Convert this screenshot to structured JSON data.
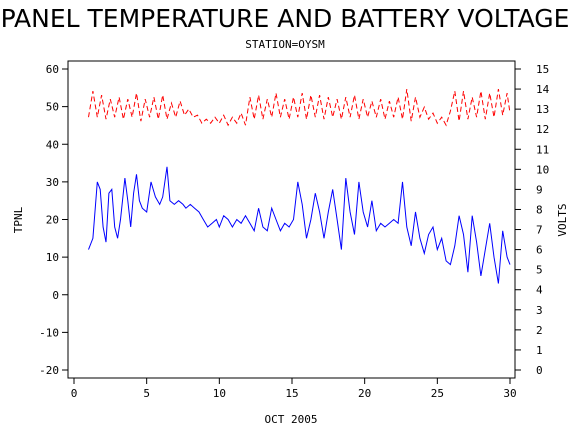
{
  "chart_data": {
    "type": "line",
    "title": "PANEL TEMPERATURE AND BATTERY VOLTAGE",
    "subtitle": "STATION=OYSM",
    "xlabel": "OCT 2005",
    "ylabel_left": "TPNL",
    "ylabel_right": "VOLTS",
    "xlim": [
      0,
      30
    ],
    "ylim_left": [
      -20,
      60
    ],
    "ylim_right": [
      0,
      15
    ],
    "x_ticks": [
      "0",
      "5",
      "10",
      "15",
      "20",
      "25",
      "30"
    ],
    "y_ticks_left": [
      "-20",
      "-10",
      "0",
      "10",
      "20",
      "30",
      "40",
      "50",
      "60"
    ],
    "y_ticks_right": [
      "0",
      "1",
      "2",
      "3",
      "4",
      "5",
      "6",
      "7",
      "8",
      "9",
      "10",
      "11",
      "12",
      "13",
      "14",
      "15"
    ],
    "series": [
      {
        "name": "TPNL",
        "axis": "left",
        "color": "#0000ff",
        "style": "solid",
        "points": [
          [
            1.0,
            12
          ],
          [
            1.3,
            15
          ],
          [
            1.6,
            30
          ],
          [
            1.8,
            28
          ],
          [
            2.0,
            18
          ],
          [
            2.2,
            14
          ],
          [
            2.4,
            27
          ],
          [
            2.6,
            28
          ],
          [
            2.8,
            18
          ],
          [
            3.0,
            15
          ],
          [
            3.2,
            20
          ],
          [
            3.5,
            31
          ],
          [
            3.7,
            25
          ],
          [
            3.9,
            18
          ],
          [
            4.1,
            27
          ],
          [
            4.3,
            32
          ],
          [
            4.5,
            25
          ],
          [
            4.7,
            23
          ],
          [
            5.0,
            22
          ],
          [
            5.3,
            30
          ],
          [
            5.6,
            26
          ],
          [
            5.9,
            24
          ],
          [
            6.1,
            26
          ],
          [
            6.4,
            34
          ],
          [
            6.6,
            25
          ],
          [
            6.9,
            24
          ],
          [
            7.2,
            25
          ],
          [
            7.5,
            24
          ],
          [
            7.7,
            23
          ],
          [
            8.0,
            24
          ],
          [
            8.3,
            23
          ],
          [
            8.6,
            22
          ],
          [
            8.9,
            20
          ],
          [
            9.2,
            18
          ],
          [
            9.5,
            19
          ],
          [
            9.8,
            20
          ],
          [
            10.0,
            18
          ],
          [
            10.3,
            21
          ],
          [
            10.6,
            20
          ],
          [
            10.9,
            18
          ],
          [
            11.2,
            20
          ],
          [
            11.5,
            19
          ],
          [
            11.8,
            21
          ],
          [
            12.1,
            19
          ],
          [
            12.4,
            17
          ],
          [
            12.7,
            23
          ],
          [
            13.0,
            18
          ],
          [
            13.3,
            17
          ],
          [
            13.6,
            23
          ],
          [
            13.9,
            20
          ],
          [
            14.2,
            17
          ],
          [
            14.5,
            19
          ],
          [
            14.8,
            18
          ],
          [
            15.1,
            20
          ],
          [
            15.4,
            30
          ],
          [
            15.7,
            24
          ],
          [
            16.0,
            15
          ],
          [
            16.3,
            20
          ],
          [
            16.6,
            27
          ],
          [
            16.9,
            22
          ],
          [
            17.2,
            15
          ],
          [
            17.5,
            22
          ],
          [
            17.8,
            28
          ],
          [
            18.1,
            20
          ],
          [
            18.4,
            12
          ],
          [
            18.7,
            31
          ],
          [
            19.0,
            22
          ],
          [
            19.3,
            16
          ],
          [
            19.6,
            30
          ],
          [
            19.9,
            22
          ],
          [
            20.2,
            18
          ],
          [
            20.5,
            25
          ],
          [
            20.8,
            17
          ],
          [
            21.1,
            19
          ],
          [
            21.4,
            18
          ],
          [
            21.7,
            19
          ],
          [
            22.0,
            20
          ],
          [
            22.3,
            19
          ],
          [
            22.6,
            30
          ],
          [
            22.9,
            18
          ],
          [
            23.2,
            13
          ],
          [
            23.5,
            22
          ],
          [
            23.8,
            15
          ],
          [
            24.1,
            11
          ],
          [
            24.4,
            16
          ],
          [
            24.7,
            18
          ],
          [
            25.0,
            12
          ],
          [
            25.3,
            15
          ],
          [
            25.6,
            9
          ],
          [
            25.9,
            8
          ],
          [
            26.2,
            13
          ],
          [
            26.5,
            21
          ],
          [
            26.8,
            16
          ],
          [
            27.1,
            6
          ],
          [
            27.4,
            21
          ],
          [
            27.7,
            14
          ],
          [
            28.0,
            5
          ],
          [
            28.3,
            12
          ],
          [
            28.6,
            19
          ],
          [
            28.9,
            10
          ],
          [
            29.2,
            3
          ],
          [
            29.5,
            17
          ],
          [
            29.8,
            10
          ],
          [
            30.0,
            8
          ]
        ]
      },
      {
        "name": "VOLTS",
        "axis": "right",
        "color": "#ff0000",
        "style": "dashed",
        "points": [
          [
            1.0,
            12.6
          ],
          [
            1.3,
            13.9
          ],
          [
            1.6,
            12.6
          ],
          [
            1.9,
            13.7
          ],
          [
            2.2,
            12.5
          ],
          [
            2.5,
            13.5
          ],
          [
            2.8,
            12.6
          ],
          [
            3.1,
            13.6
          ],
          [
            3.4,
            12.5
          ],
          [
            3.7,
            13.5
          ],
          [
            4.0,
            12.6
          ],
          [
            4.3,
            13.8
          ],
          [
            4.6,
            12.4
          ],
          [
            4.9,
            13.5
          ],
          [
            5.2,
            12.6
          ],
          [
            5.5,
            13.6
          ],
          [
            5.8,
            12.5
          ],
          [
            6.1,
            13.7
          ],
          [
            6.4,
            12.5
          ],
          [
            6.7,
            13.3
          ],
          [
            7.0,
            12.6
          ],
          [
            7.3,
            13.4
          ],
          [
            7.6,
            12.7
          ],
          [
            7.9,
            13.0
          ],
          [
            8.2,
            12.6
          ],
          [
            8.5,
            12.7
          ],
          [
            8.8,
            12.3
          ],
          [
            9.1,
            12.5
          ],
          [
            9.4,
            12.3
          ],
          [
            9.7,
            12.6
          ],
          [
            10.0,
            12.3
          ],
          [
            10.3,
            12.7
          ],
          [
            10.6,
            12.2
          ],
          [
            10.9,
            12.6
          ],
          [
            11.2,
            12.3
          ],
          [
            11.5,
            12.8
          ],
          [
            11.8,
            12.2
          ],
          [
            12.1,
            13.6
          ],
          [
            12.4,
            12.5
          ],
          [
            12.7,
            13.7
          ],
          [
            13.0,
            12.5
          ],
          [
            13.3,
            13.5
          ],
          [
            13.6,
            12.6
          ],
          [
            13.9,
            13.8
          ],
          [
            14.2,
            12.6
          ],
          [
            14.5,
            13.5
          ],
          [
            14.8,
            12.5
          ],
          [
            15.1,
            13.6
          ],
          [
            15.4,
            12.6
          ],
          [
            15.7,
            13.8
          ],
          [
            16.0,
            12.5
          ],
          [
            16.3,
            13.7
          ],
          [
            16.6,
            12.6
          ],
          [
            16.9,
            13.7
          ],
          [
            17.2,
            12.5
          ],
          [
            17.5,
            13.6
          ],
          [
            17.8,
            12.6
          ],
          [
            18.1,
            13.5
          ],
          [
            18.4,
            12.5
          ],
          [
            18.7,
            13.6
          ],
          [
            19.0,
            12.6
          ],
          [
            19.3,
            13.7
          ],
          [
            19.6,
            12.5
          ],
          [
            19.9,
            13.5
          ],
          [
            20.2,
            12.6
          ],
          [
            20.5,
            13.4
          ],
          [
            20.8,
            12.6
          ],
          [
            21.1,
            13.5
          ],
          [
            21.4,
            12.5
          ],
          [
            21.7,
            13.4
          ],
          [
            22.0,
            12.6
          ],
          [
            22.3,
            13.6
          ],
          [
            22.6,
            12.5
          ],
          [
            22.9,
            14.0
          ],
          [
            23.2,
            12.4
          ],
          [
            23.5,
            13.6
          ],
          [
            23.8,
            12.6
          ],
          [
            24.1,
            13.1
          ],
          [
            24.4,
            12.5
          ],
          [
            24.7,
            12.8
          ],
          [
            25.0,
            12.3
          ],
          [
            25.3,
            12.6
          ],
          [
            25.6,
            12.2
          ],
          [
            25.9,
            12.9
          ],
          [
            26.2,
            13.9
          ],
          [
            26.5,
            12.4
          ],
          [
            26.8,
            13.9
          ],
          [
            27.1,
            12.5
          ],
          [
            27.4,
            13.6
          ],
          [
            27.7,
            12.6
          ],
          [
            28.0,
            13.9
          ],
          [
            28.3,
            12.5
          ],
          [
            28.6,
            13.8
          ],
          [
            28.9,
            12.6
          ],
          [
            29.2,
            14.0
          ],
          [
            29.5,
            12.7
          ],
          [
            29.8,
            13.8
          ],
          [
            30.0,
            12.8
          ]
        ]
      }
    ]
  }
}
